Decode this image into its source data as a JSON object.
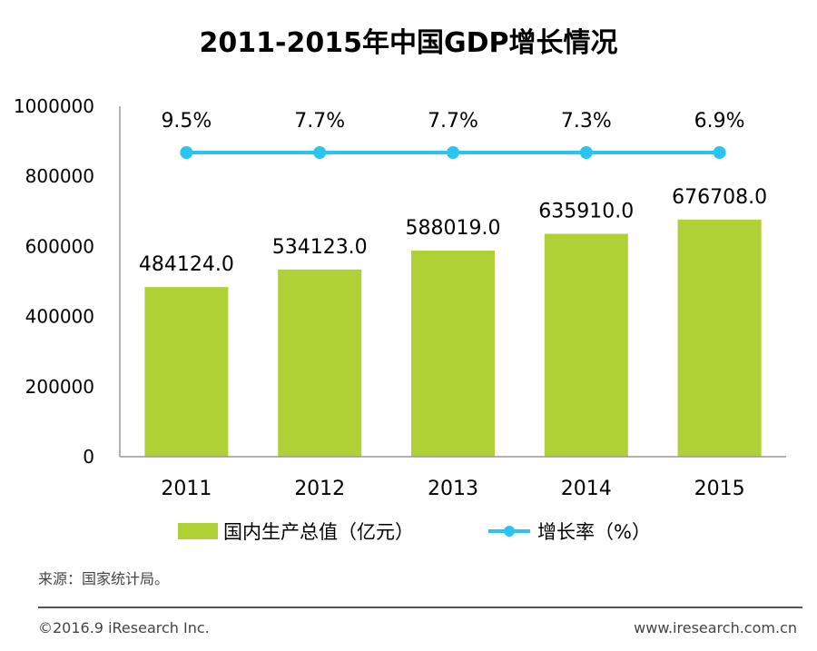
{
  "chart_data": {
    "type": "bar",
    "title": "2011-2015年中国GDP增长情况",
    "categories": [
      "2011",
      "2012",
      "2013",
      "2014",
      "2015"
    ],
    "series": [
      {
        "name": "国内生产总值（亿元）",
        "type": "bar",
        "values": [
          484124.0,
          534123.0,
          588019.0,
          635910.0,
          676708.0
        ],
        "labels": [
          "484124.0",
          "534123.0",
          "588019.0",
          "635910.0",
          "676708.0"
        ]
      },
      {
        "name": "增长率（%）",
        "type": "line",
        "values": [
          9.5,
          7.7,
          7.7,
          7.3,
          6.9
        ],
        "labels": [
          "9.5%",
          "7.7%",
          "7.7%",
          "7.3%",
          "6.9%"
        ]
      }
    ],
    "ylim": [
      0,
      1000000
    ],
    "yticks": [
      "0",
      "200000",
      "400000",
      "600000",
      "800000",
      "1000000"
    ],
    "xlabel": "",
    "ylabel": "",
    "legend_position": "bottom"
  },
  "colors": {
    "bar": "#b0d136",
    "line": "#29c5ee"
  },
  "source": "来源：国家统计局。",
  "copyright": "©2016.9 iResearch Inc.",
  "website": "www.iresearch.com.cn"
}
